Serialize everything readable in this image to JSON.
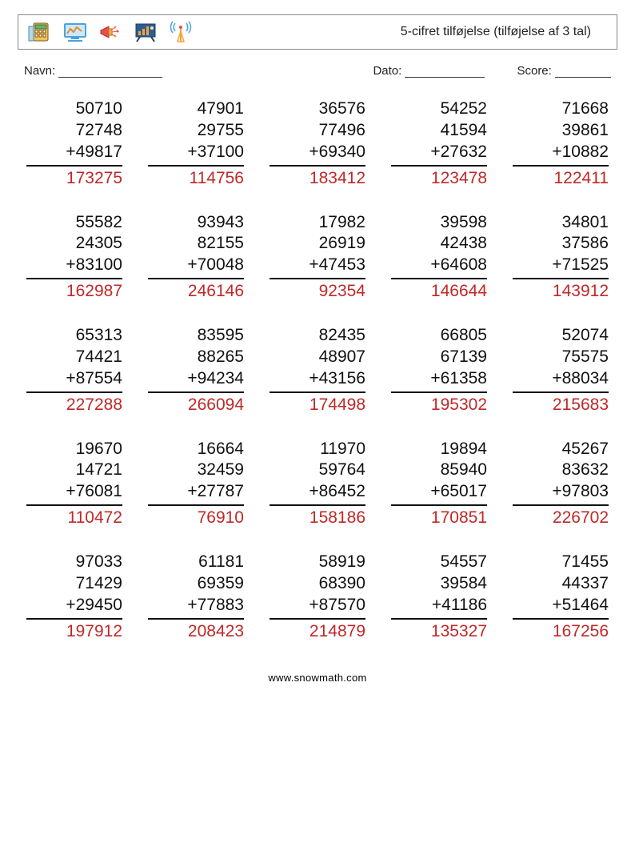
{
  "header": {
    "title": "5-cifret tilføjelse (tilføjelse af 3 tal)",
    "icon_colors": {
      "calculator_body": "#f4c25a",
      "calculator_screen": "#6ab06a",
      "screen_frame": "#4aa3df",
      "screen_panel": "#cfe8fb",
      "megaphone": "#e94e4e",
      "megaphone_accent": "#f7b04a",
      "board_frame": "#3a6ea5",
      "board_panel": "#2f5e8e",
      "board_chart": "#f3a53c",
      "antenna": "#f4a536",
      "antenna_wave": "#4aa3df"
    }
  },
  "labels": {
    "name": "Navn:",
    "date": "Dato:",
    "score": "Score:"
  },
  "footer": {
    "text": "www.snowmath.com"
  },
  "style": {
    "answer_color": "#c02828",
    "text_color": "#111111",
    "border_color": "#888888",
    "font_size_problem": 21,
    "font_size_title": 16,
    "font_size_fields": 15,
    "font_size_footer": 13,
    "columns": 5,
    "rows": 5
  },
  "problems": [
    [
      {
        "a": 50710,
        "b": 72748,
        "c": 49817,
        "ans": 173275
      },
      {
        "a": 47901,
        "b": 29755,
        "c": 37100,
        "ans": 114756
      },
      {
        "a": 36576,
        "b": 77496,
        "c": 69340,
        "ans": 183412
      },
      {
        "a": 54252,
        "b": 41594,
        "c": 27632,
        "ans": 123478
      },
      {
        "a": 71668,
        "b": 39861,
        "c": 10882,
        "ans": 122411
      }
    ],
    [
      {
        "a": 55582,
        "b": 24305,
        "c": 83100,
        "ans": 162987
      },
      {
        "a": 93943,
        "b": 82155,
        "c": 70048,
        "ans": 246146
      },
      {
        "a": 17982,
        "b": 26919,
        "c": 47453,
        "ans": 92354
      },
      {
        "a": 39598,
        "b": 42438,
        "c": 64608,
        "ans": 146644
      },
      {
        "a": 34801,
        "b": 37586,
        "c": 71525,
        "ans": 143912
      }
    ],
    [
      {
        "a": 65313,
        "b": 74421,
        "c": 87554,
        "ans": 227288
      },
      {
        "a": 83595,
        "b": 88265,
        "c": 94234,
        "ans": 266094
      },
      {
        "a": 82435,
        "b": 48907,
        "c": 43156,
        "ans": 174498
      },
      {
        "a": 66805,
        "b": 67139,
        "c": 61358,
        "ans": 195302
      },
      {
        "a": 52074,
        "b": 75575,
        "c": 88034,
        "ans": 215683
      }
    ],
    [
      {
        "a": 19670,
        "b": 14721,
        "c": 76081,
        "ans": 110472
      },
      {
        "a": 16664,
        "b": 32459,
        "c": 27787,
        "ans": 76910
      },
      {
        "a": 11970,
        "b": 59764,
        "c": 86452,
        "ans": 158186
      },
      {
        "a": 19894,
        "b": 85940,
        "c": 65017,
        "ans": 170851
      },
      {
        "a": 45267,
        "b": 83632,
        "c": 97803,
        "ans": 226702
      }
    ],
    [
      {
        "a": 97033,
        "b": 71429,
        "c": 29450,
        "ans": 197912
      },
      {
        "a": 61181,
        "b": 69359,
        "c": 77883,
        "ans": 208423
      },
      {
        "a": 58919,
        "b": 68390,
        "c": 87570,
        "ans": 214879
      },
      {
        "a": 54557,
        "b": 39584,
        "c": 41186,
        "ans": 135327
      },
      {
        "a": 71455,
        "b": 44337,
        "c": 51464,
        "ans": 167256
      }
    ]
  ]
}
